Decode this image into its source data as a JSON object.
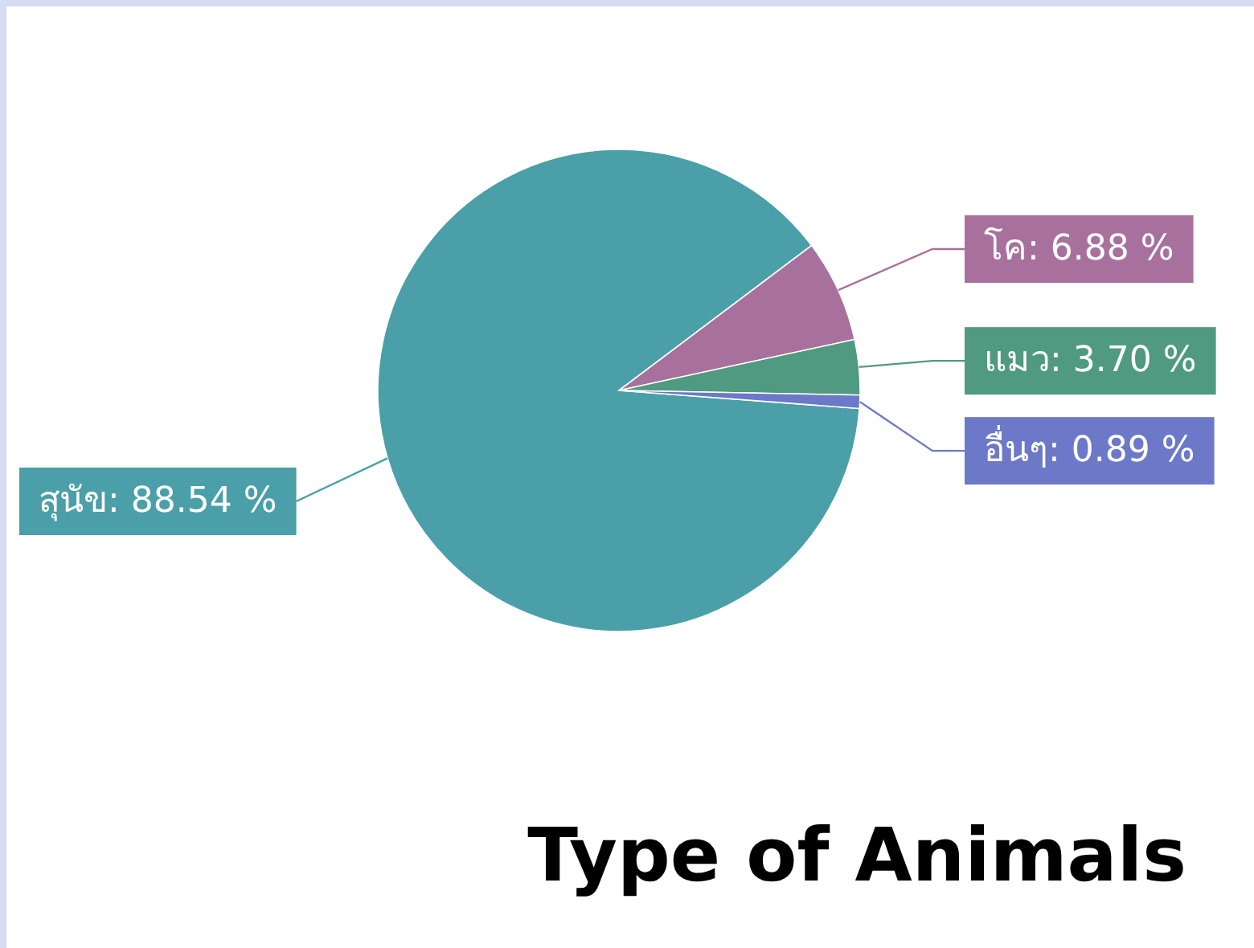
{
  "chart_data": {
    "type": "pie",
    "title": "Type of Animals",
    "categories": [
      "สุนัข",
      "โค",
      "แมว",
      "อื่นๆ"
    ],
    "values": [
      88.54,
      6.88,
      3.7,
      0.89
    ],
    "value_labels": [
      "88.54 %",
      "6.88 %",
      "3.70 %",
      "0.89 %"
    ],
    "colors": [
      "#4a9fa9",
      "#a8719d",
      "#4f9a80",
      "#6c78c8"
    ]
  }
}
